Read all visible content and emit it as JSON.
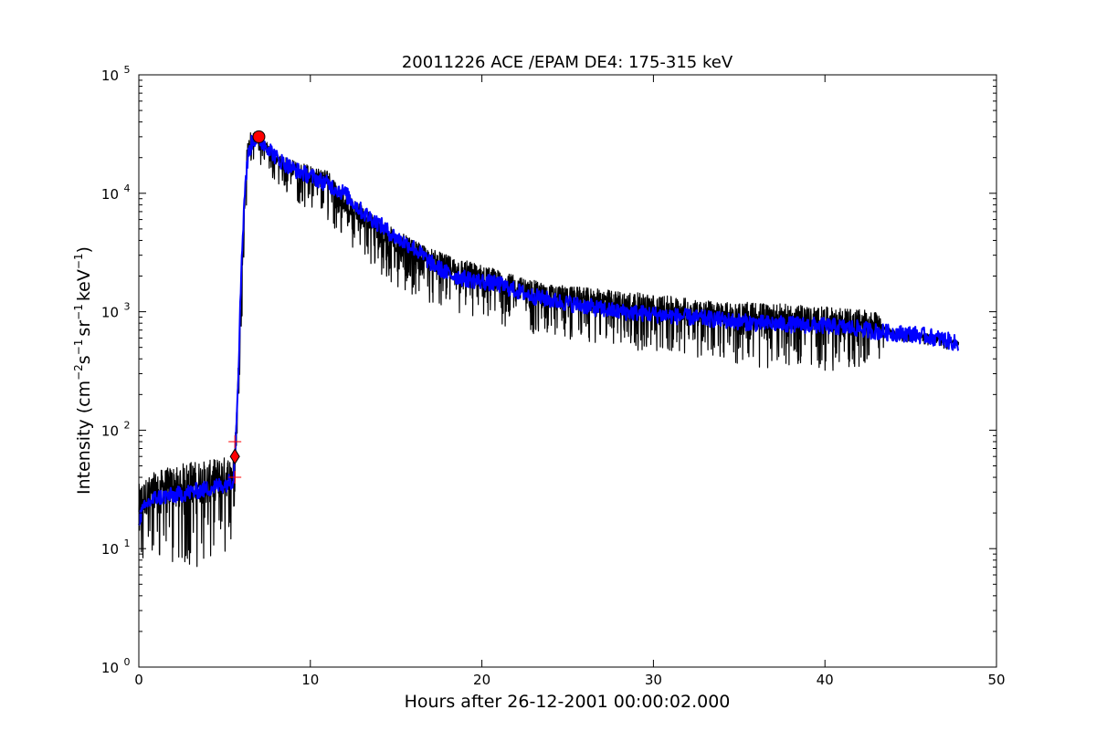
{
  "chart_data": {
    "type": "line",
    "title": "20011226 ACE /EPAM DE4: 175-315 keV",
    "xlabel": "Hours after 26-12-2001 00:00:02.000",
    "ylabel": {
      "prefix": "Intensity (cm",
      "exp1": "−2",
      "mid1": "s",
      "exp2": "−1",
      "mid2": "sr",
      "exp3": "−1",
      "mid3": "keV",
      "exp4": "−1",
      "suffix": ")"
    },
    "xlim": [
      0,
      50
    ],
    "ylim": [
      1,
      100000
    ],
    "yscale": "log",
    "grid": false,
    "xticks": [
      0,
      10,
      20,
      30,
      40,
      50
    ],
    "xtick_labels": [
      "0",
      "10",
      "20",
      "30",
      "40",
      "50"
    ],
    "yticks": [
      1,
      10,
      100,
      1000,
      10000,
      100000
    ],
    "ytick_labels": [
      {
        "base": "10",
        "exp": "0"
      },
      {
        "base": "10",
        "exp": "1"
      },
      {
        "base": "10",
        "exp": "2"
      },
      {
        "base": "10",
        "exp": "3"
      },
      {
        "base": "10",
        "exp": "4"
      },
      {
        "base": "10",
        "exp": "5"
      }
    ],
    "series": [
      {
        "role": "raw",
        "color": "#000000",
        "envelope": {
          "x": [
            0,
            0.5,
            1,
            2,
            3,
            4,
            5,
            5.5,
            5.7,
            6.0,
            6.3,
            6.5,
            6.8,
            7.0,
            7.5,
            8,
            9,
            10,
            11,
            12,
            13,
            14,
            15,
            16,
            18,
            20,
            22,
            24,
            26,
            28,
            30,
            32,
            34,
            36,
            38,
            40,
            42,
            43,
            43.5,
            44,
            45,
            46,
            47,
            47.8
          ],
          "upper": [
            35,
            40,
            45,
            50,
            55,
            55,
            60,
            60,
            150,
            2500,
            25000,
            33000,
            33000,
            31000,
            27000,
            22000,
            19000,
            17000,
            16000,
            10000,
            8000,
            6000,
            5000,
            4000,
            3000,
            2500,
            2000,
            1700,
            1600,
            1500,
            1400,
            1300,
            1200,
            1200,
            1150,
            1100,
            1050,
            1000,
            750,
            700,
            680,
            650,
            600,
            560
          ],
          "lower": [
            5,
            7,
            8,
            7,
            7,
            7,
            8,
            10,
            60,
            800,
            10000,
            18000,
            20000,
            18000,
            15000,
            12000,
            9000,
            7000,
            6000,
            4000,
            3000,
            2000,
            1500,
            1400,
            1000,
            800,
            700,
            600,
            550,
            500,
            450,
            420,
            400,
            330,
            330,
            320,
            320,
            320,
            550,
            550,
            550,
            520,
            480,
            460
          ]
        }
      },
      {
        "role": "smoothed",
        "color": "#0000ff",
        "x": [
          0,
          0.5,
          1,
          2,
          3,
          4,
          5,
          5.5,
          5.6,
          5.8,
          6.0,
          6.2,
          6.4,
          6.6,
          6.8,
          7.0,
          7.5,
          8,
          9,
          10,
          11,
          12,
          13,
          14,
          15,
          16,
          17,
          18,
          19,
          20,
          21,
          22,
          23,
          24,
          25,
          26,
          27,
          28,
          29,
          30,
          32,
          34,
          36,
          38,
          40,
          42,
          43,
          44,
          45,
          46,
          47,
          47.8
        ],
        "values": [
          18,
          24,
          27,
          28,
          30,
          32,
          35,
          38,
          60,
          300,
          3000,
          12000,
          22000,
          27000,
          29000,
          28000,
          25000,
          20000,
          16000,
          14000,
          12000,
          10000,
          7000,
          5500,
          4200,
          3500,
          2600,
          2100,
          1900,
          1800,
          1700,
          1500,
          1350,
          1250,
          1180,
          1120,
          1050,
          1000,
          980,
          950,
          900,
          850,
          800,
          780,
          760,
          720,
          680,
          660,
          650,
          620,
          580,
          530
        ]
      }
    ],
    "markers": [
      {
        "shape": "diamond",
        "color": "#ff0000",
        "x": 5.6,
        "y": 60
      },
      {
        "shape": "plus",
        "color": "#ff0000",
        "x": 5.6,
        "y": 80
      },
      {
        "shape": "plus",
        "color": "#ff0000",
        "x": 5.6,
        "y": 40
      },
      {
        "shape": "circle",
        "color": "#ff0000",
        "x": 7.0,
        "y": 30000
      }
    ]
  }
}
